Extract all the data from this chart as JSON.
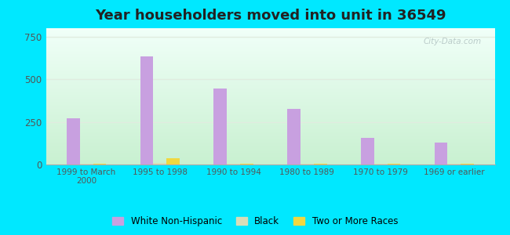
{
  "title": "Year householders moved into unit in 36549",
  "categories": [
    "1999 to March\n2000",
    "1995 to 1998",
    "1990 to 1994",
    "1980 to 1989",
    "1970 to 1979",
    "1969 or earlier"
  ],
  "series": {
    "White Non-Hispanic": [
      270,
      635,
      445,
      325,
      155,
      130
    ],
    "Black": [
      5,
      8,
      5,
      5,
      5,
      5
    ],
    "Two or More Races": [
      5,
      38,
      5,
      5,
      5,
      5
    ]
  },
  "colors": {
    "White Non-Hispanic": "#c8a0e0",
    "Black": "#d8ddb8",
    "Two or More Races": "#f0d840"
  },
  "ylim": [
    0,
    800
  ],
  "yticks": [
    0,
    250,
    500,
    750
  ],
  "background_outer": "#00e8ff",
  "background_inner_top": "#f0fff8",
  "background_inner_bottom": "#c8f0d0",
  "watermark": "City-Data.com",
  "title_fontsize": 13,
  "bar_width": 0.18,
  "grid_color": "#e0ece0"
}
